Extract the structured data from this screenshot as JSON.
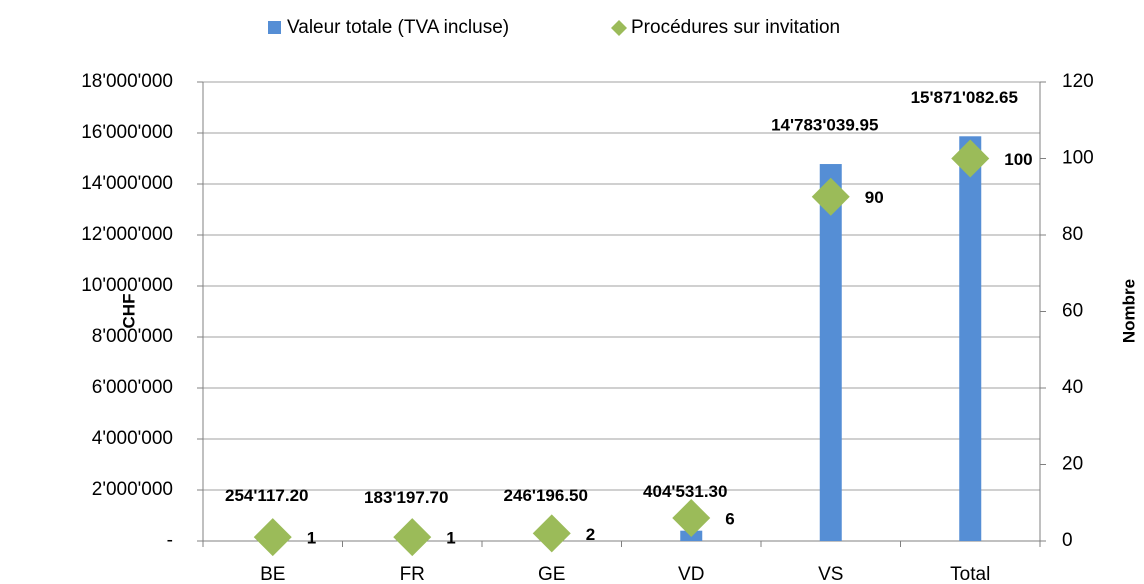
{
  "chart_data": {
    "type": "bar",
    "categories": [
      "BE",
      "FR",
      "GE",
      "VD",
      "VS",
      "Total"
    ],
    "series": [
      {
        "name": "Valeur totale (TVA incluse)",
        "type": "bar",
        "color": "#558ed5",
        "values": [
          254117.2,
          183197.7,
          246196.5,
          404531.3,
          14783039.95,
          15871082.65
        ],
        "value_labels": [
          "254'117.20",
          "183'197.70",
          "246'196.50",
          "404'531.30",
          "14'783'039.95",
          "15'871'082.65"
        ]
      },
      {
        "name": "Procédures sur invitation",
        "type": "scatter",
        "color": "#9bbb59",
        "axis": "y2",
        "values": [
          1,
          1,
          2,
          6,
          90,
          100
        ]
      }
    ],
    "ylabel": "CHF",
    "y2label": "Nombre",
    "ylim": [
      0,
      18000000
    ],
    "yticks": [
      {
        "value": 0,
        "label": "-"
      },
      {
        "value": 2000000,
        "label": "2'000'000"
      },
      {
        "value": 4000000,
        "label": "4'000'000"
      },
      {
        "value": 6000000,
        "label": "6'000'000"
      },
      {
        "value": 8000000,
        "label": "8'000'000"
      },
      {
        "value": 10000000,
        "label": "10'000'000"
      },
      {
        "value": 12000000,
        "label": "12'000'000"
      },
      {
        "value": 14000000,
        "label": "14'000'000"
      },
      {
        "value": 16000000,
        "label": "16'000'000"
      },
      {
        "value": 18000000,
        "label": "18'000'000"
      }
    ],
    "y2lim": [
      0,
      120
    ],
    "y2ticks": [
      0,
      20,
      40,
      60,
      80,
      100,
      120
    ],
    "grid": true,
    "legend": "top"
  }
}
